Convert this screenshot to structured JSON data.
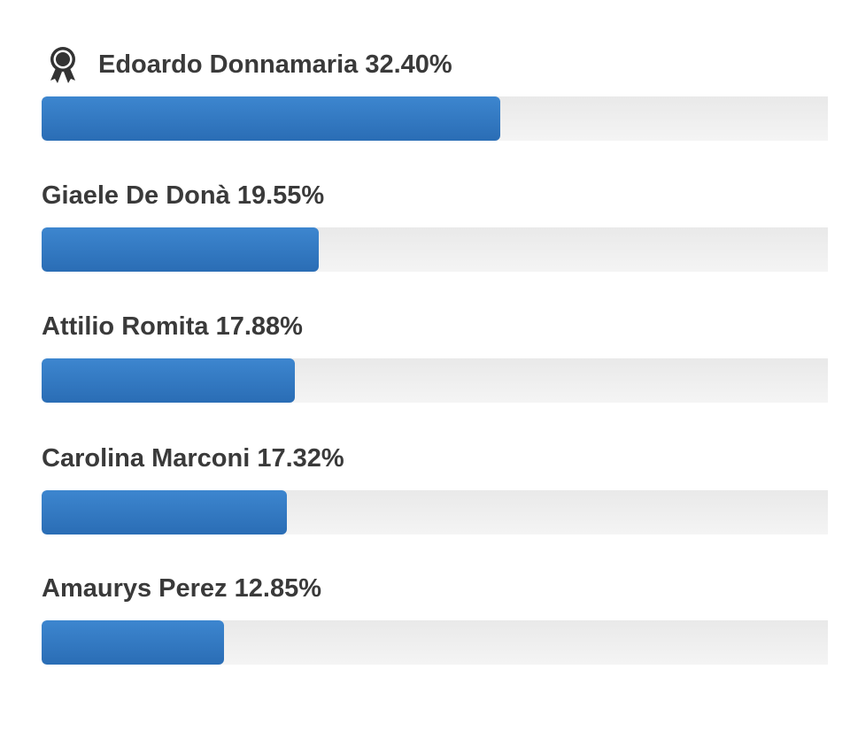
{
  "poll": {
    "accent_color": "#2f78c4",
    "track_color": "#efefef",
    "winner_icon": "award-ribbon-icon",
    "results": [
      {
        "name": "Edoardo Donnamaria",
        "percent_label": "32.40%",
        "percent": 32.4
      },
      {
        "name": "Giaele De Donà",
        "percent_label": "19.55%",
        "percent": 19.55
      },
      {
        "name": "Attilio Romita",
        "percent_label": "17.88%",
        "percent": 17.88
      },
      {
        "name": "Carolina Marconi",
        "percent_label": "17.32%",
        "percent": 17.32
      },
      {
        "name": "Amaurys Perez",
        "percent_label": "12.85%",
        "percent": 12.85
      }
    ]
  }
}
